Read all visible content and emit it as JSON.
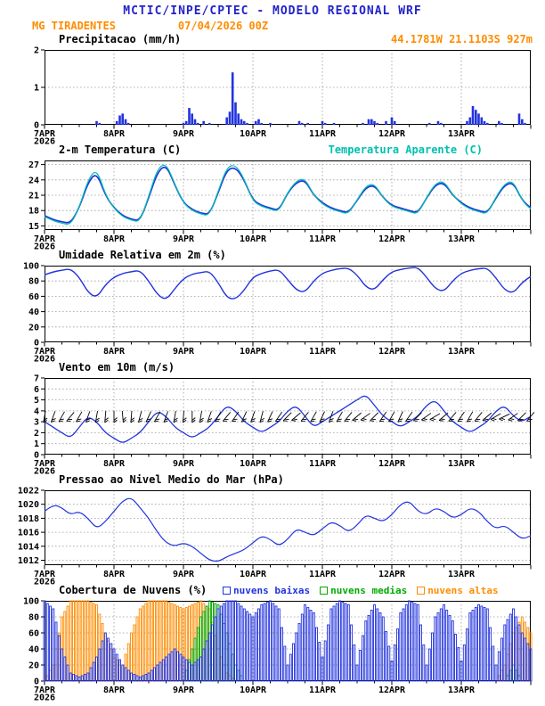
{
  "header": {
    "line1": "MCTIC/INPE/CPTEC - MODELO REGIONAL WRF",
    "station": "MG TIRADENTES",
    "run": "07/04/2026 00Z",
    "location": "44.1781W 21.1103S 927m"
  },
  "colors": {
    "header_blue": "#2222cc",
    "orange": "#ff8c00",
    "line_blue": "#2233dd",
    "cyan": "#00c0b0",
    "green": "#00aa00",
    "grid": "#999999",
    "axis": "#000000"
  },
  "x_axis": {
    "hours_total": 168,
    "minor_step": 6,
    "ticks": [
      {
        "hour": 0,
        "label": "7APR",
        "year": "2026"
      },
      {
        "hour": 24,
        "label": "8APR"
      },
      {
        "hour": 48,
        "label": "9APR"
      },
      {
        "hour": 72,
        "label": "10APR"
      },
      {
        "hour": 96,
        "label": "11APR"
      },
      {
        "hour": 120,
        "label": "12APR"
      },
      {
        "hour": 144,
        "label": "13APR"
      }
    ]
  },
  "chart_data": [
    {
      "id": "precip",
      "type": "bar",
      "title": "Precipitacao (mm/h)",
      "ylim": [
        0,
        2
      ],
      "yticks": [
        0,
        1,
        2
      ],
      "color": "#2233dd",
      "pairs": [
        [
          18,
          0.1
        ],
        [
          19,
          0.05
        ],
        [
          25,
          0.1
        ],
        [
          26,
          0.25
        ],
        [
          27,
          0.3
        ],
        [
          28,
          0.15
        ],
        [
          29,
          0.05
        ],
        [
          48,
          0.05
        ],
        [
          49,
          0.1
        ],
        [
          50,
          0.45
        ],
        [
          51,
          0.3
        ],
        [
          52,
          0.15
        ],
        [
          53,
          0.05
        ],
        [
          55,
          0.1
        ],
        [
          57,
          0.05
        ],
        [
          63,
          0.2
        ],
        [
          64,
          0.35
        ],
        [
          65,
          1.4
        ],
        [
          66,
          0.6
        ],
        [
          67,
          0.3
        ],
        [
          68,
          0.15
        ],
        [
          69,
          0.1
        ],
        [
          70,
          0.05
        ],
        [
          73,
          0.1
        ],
        [
          74,
          0.15
        ],
        [
          75,
          0.05
        ],
        [
          78,
          0.05
        ],
        [
          88,
          0.1
        ],
        [
          89,
          0.05
        ],
        [
          91,
          0.05
        ],
        [
          96,
          0.1
        ],
        [
          97,
          0.05
        ],
        [
          100,
          0.05
        ],
        [
          110,
          0.05
        ],
        [
          112,
          0.15
        ],
        [
          113,
          0.15
        ],
        [
          114,
          0.1
        ],
        [
          115,
          0.05
        ],
        [
          118,
          0.1
        ],
        [
          120,
          0.2
        ],
        [
          121,
          0.1
        ],
        [
          133,
          0.05
        ],
        [
          136,
          0.1
        ],
        [
          137,
          0.05
        ],
        [
          146,
          0.1
        ],
        [
          147,
          0.2
        ],
        [
          148,
          0.5
        ],
        [
          149,
          0.4
        ],
        [
          150,
          0.3
        ],
        [
          151,
          0.2
        ],
        [
          152,
          0.1
        ],
        [
          153,
          0.05
        ],
        [
          157,
          0.1
        ],
        [
          158,
          0.05
        ],
        [
          164,
          0.3
        ],
        [
          165,
          0.15
        ],
        [
          166,
          0.05
        ]
      ]
    },
    {
      "id": "temp",
      "type": "line",
      "title": "2-m Temperatura (C)",
      "legend_label": "Temperatura Aparente (C)",
      "ylim": [
        14.2,
        27.8
      ],
      "yticks": [
        15,
        18,
        21,
        24,
        27
      ],
      "x_step": 3,
      "series": [
        {
          "name": "2-m temperatura",
          "color": "#2233dd",
          "width": 1.7,
          "values": [
            17.0,
            16.2,
            15.8,
            15.5,
            18.5,
            23.5,
            25.5,
            21.0,
            18.5,
            17.0,
            16.3,
            16.0,
            20.5,
            25.5,
            27.0,
            23.0,
            19.5,
            18.2,
            17.5,
            17.2,
            21.5,
            26.0,
            26.5,
            24.0,
            20.0,
            19.0,
            18.5,
            18.0,
            21.5,
            23.5,
            24.0,
            21.0,
            19.5,
            18.5,
            18.0,
            17.5,
            20.0,
            22.5,
            23.0,
            20.5,
            19.0,
            18.5,
            18.0,
            17.5,
            20.5,
            23.0,
            23.5,
            21.0,
            19.5,
            18.5,
            18.0,
            17.5,
            20.5,
            23.0,
            23.5,
            20.0,
            18.5
          ]
        },
        {
          "name": "temperatura aparente",
          "color": "#00c0b0",
          "width": 1.2,
          "values": [
            16.8,
            16.0,
            15.5,
            15.2,
            18.6,
            24.0,
            26.2,
            21.2,
            18.4,
            16.8,
            16.1,
            15.8,
            20.8,
            26.2,
            27.3,
            23.2,
            19.4,
            18.0,
            17.3,
            17.0,
            21.8,
            26.5,
            27.0,
            24.2,
            19.8,
            18.8,
            18.3,
            17.8,
            21.6,
            23.8,
            24.3,
            21.0,
            19.3,
            18.3,
            17.8,
            17.3,
            20.1,
            22.8,
            23.3,
            20.4,
            18.8,
            18.3,
            17.8,
            17.3,
            20.6,
            23.3,
            23.8,
            21.1,
            19.3,
            18.3,
            17.8,
            17.3,
            20.7,
            23.3,
            23.8,
            19.9,
            18.3
          ]
        }
      ]
    },
    {
      "id": "rh",
      "type": "line",
      "title": "Umidade Relativa em 2m (%)",
      "ylim": [
        0,
        100
      ],
      "yticks": [
        0,
        20,
        40,
        60,
        80,
        100
      ],
      "x_step": 3,
      "series": [
        {
          "name": "umidade relativa",
          "color": "#2233dd",
          "width": 1.4,
          "values": [
            88,
            92,
            94,
            96,
            85,
            65,
            58,
            75,
            85,
            90,
            92,
            94,
            80,
            62,
            55,
            70,
            83,
            89,
            91,
            93,
            78,
            58,
            56,
            68,
            85,
            90,
            93,
            95,
            82,
            68,
            65,
            80,
            90,
            94,
            96,
            97,
            88,
            72,
            68,
            82,
            92,
            95,
            97,
            98,
            85,
            70,
            66,
            80,
            90,
            94,
            96,
            97,
            84,
            68,
            64,
            78,
            86
          ]
        }
      ]
    },
    {
      "id": "wind",
      "type": "wind",
      "title": "Vento em 10m (m/s)",
      "ylim": [
        0,
        7
      ],
      "yticks": [
        0,
        1,
        2,
        3,
        4,
        5,
        6,
        7
      ],
      "x_step": 3,
      "series": [
        {
          "name": "velocidade do vento",
          "color": "#2233dd",
          "width": 1.3,
          "values": [
            3.0,
            2.5,
            2.0,
            1.5,
            2.5,
            3.5,
            3.0,
            2.0,
            1.5,
            1.0,
            1.5,
            2.0,
            3.0,
            4.0,
            3.5,
            2.5,
            2.0,
            1.5,
            2.0,
            2.5,
            3.5,
            4.5,
            4.0,
            3.0,
            2.5,
            2.0,
            2.5,
            3.0,
            4.0,
            4.5,
            3.5,
            2.5,
            3.0,
            3.5,
            4.0,
            4.5,
            5.0,
            5.5,
            4.5,
            3.5,
            3.0,
            2.5,
            3.0,
            3.5,
            4.5,
            5.0,
            4.0,
            3.0,
            2.5,
            2.0,
            2.5,
            3.0,
            4.0,
            4.5,
            3.5,
            3.0,
            3.5
          ]
        }
      ],
      "barbs": {
        "y": 3.5,
        "dirs": [
          100,
          110,
          120,
          130,
          120,
          110,
          100,
          95,
          90,
          85,
          95,
          105,
          115,
          120,
          110,
          100,
          95,
          90,
          100,
          110,
          120,
          130,
          125,
          115,
          110,
          105,
          115,
          125,
          135,
          140,
          130,
          120,
          115,
          110,
          120,
          130,
          140,
          145,
          135,
          125,
          120,
          115,
          125,
          135,
          145,
          150,
          140,
          130,
          125,
          120,
          130,
          140,
          150,
          155,
          145,
          135,
          130
        ]
      }
    },
    {
      "id": "pressure",
      "type": "line",
      "title": "Pressao ao Nivel Medio do Mar (hPa)",
      "ylim": [
        1011.3,
        1022
      ],
      "yticks": [
        1012,
        1014,
        1016,
        1018,
        1020,
        1022
      ],
      "x_step": 3,
      "series": [
        {
          "name": "pressao",
          "color": "#2233dd",
          "width": 1.2,
          "values": [
            1019.0,
            1020.0,
            1019.5,
            1018.5,
            1019.0,
            1018.0,
            1016.5,
            1017.5,
            1019.0,
            1020.5,
            1021.0,
            1019.5,
            1018.0,
            1016.0,
            1014.5,
            1014.0,
            1014.5,
            1014.0,
            1013.0,
            1012.0,
            1011.8,
            1012.5,
            1013.0,
            1013.5,
            1014.5,
            1015.5,
            1015.0,
            1014.0,
            1015.0,
            1016.5,
            1016.0,
            1015.5,
            1016.5,
            1017.5,
            1017.0,
            1016.0,
            1017.0,
            1018.5,
            1018.0,
            1017.5,
            1018.5,
            1020.0,
            1020.5,
            1019.0,
            1018.5,
            1019.5,
            1019.0,
            1018.0,
            1018.5,
            1019.5,
            1019.0,
            1017.5,
            1016.5,
            1017.0,
            1016.0,
            1015.0,
            1015.5
          ]
        }
      ]
    },
    {
      "id": "clouds",
      "type": "cloudbar",
      "title": "Cobertura de Nuvens (%)",
      "ylim": [
        0,
        100
      ],
      "yticks": [
        0,
        20,
        40,
        60,
        80,
        100
      ],
      "x_step": 3,
      "series": [
        {
          "key": "baixas",
          "label": "nuvens baixas",
          "color": "#2233dd",
          "values": [
            100,
            90,
            40,
            10,
            5,
            10,
            30,
            60,
            40,
            20,
            10,
            5,
            10,
            20,
            30,
            40,
            30,
            20,
            30,
            60,
            90,
            100,
            100,
            90,
            80,
            95,
            100,
            90,
            20,
            60,
            95,
            85,
            30,
            90,
            100,
            95,
            20,
            75,
            95,
            80,
            25,
            85,
            100,
            95,
            20,
            80,
            95,
            75,
            25,
            85,
            95,
            90,
            20,
            70,
            90,
            60,
            40
          ]
        },
        {
          "key": "medias",
          "label": "nuvens medias",
          "color": "#00aa00",
          "values": [
            0,
            0,
            0,
            0,
            0,
            0,
            0,
            0,
            0,
            0,
            0,
            0,
            0,
            0,
            0,
            0,
            0,
            40,
            80,
            100,
            95,
            60,
            20,
            0,
            0,
            0,
            0,
            0,
            0,
            0,
            0,
            0,
            0,
            0,
            0,
            0,
            0,
            0,
            0,
            0,
            0,
            0,
            0,
            0,
            0,
            0,
            0,
            0,
            0,
            0,
            0,
            0,
            0,
            0,
            20,
            0,
            0
          ]
        },
        {
          "key": "altas",
          "label": "nuvens altas",
          "color": "#ff8c00",
          "values": [
            0,
            20,
            80,
            100,
            100,
            100,
            95,
            60,
            30,
            20,
            60,
            90,
            100,
            100,
            100,
            95,
            90,
            95,
            100,
            90,
            40,
            10,
            0,
            0,
            0,
            0,
            0,
            0,
            0,
            0,
            0,
            0,
            0,
            0,
            0,
            0,
            0,
            0,
            0,
            0,
            0,
            0,
            0,
            0,
            0,
            0,
            0,
            0,
            0,
            0,
            0,
            0,
            0,
            20,
            60,
            80,
            60
          ]
        }
      ]
    }
  ]
}
